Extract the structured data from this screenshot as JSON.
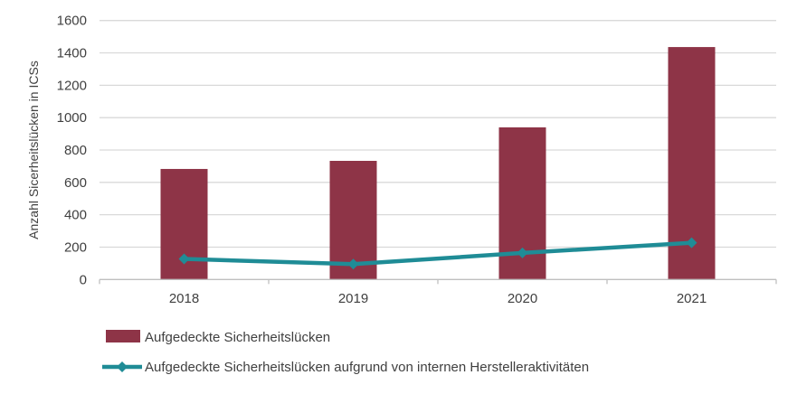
{
  "chart_data": {
    "type": "bar",
    "title": "",
    "xlabel": "",
    "ylabel": "Anzahl Sicerheitslücken in ICSs",
    "ylim": [
      0,
      1600
    ],
    "yticks": [
      0,
      200,
      400,
      600,
      800,
      1000,
      1200,
      1400,
      1600
    ],
    "grid": true,
    "legend_position": "bottom-left",
    "categories": [
      "2018",
      "2019",
      "2020",
      "2021"
    ],
    "series": [
      {
        "name": "Aufgedeckte Sicherheitslücken",
        "type": "bar",
        "color": "#8E3447",
        "values": [
          683,
          733,
          940,
          1436
        ]
      },
      {
        "name": "Aufgedeckte Sicherheitslücken aufgrund von internen Herstelleraktivitäten",
        "type": "line",
        "marker": "diamond",
        "color": "#1F8C96",
        "values": [
          127,
          95,
          164,
          227
        ]
      }
    ]
  }
}
